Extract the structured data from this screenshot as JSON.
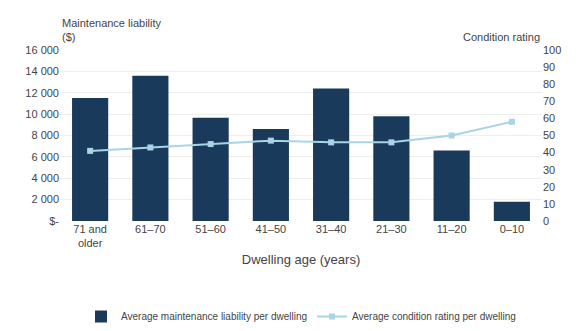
{
  "chart_data": {
    "type": "bar",
    "categories": [
      "71 and\nolder",
      "61–70",
      "51–60",
      "41–50",
      "31–40",
      "21–30",
      "11–20",
      "0–10"
    ],
    "series": [
      {
        "name": "Average maintenance liability per dwelling",
        "type": "bar",
        "color": "#1a3a5c",
        "values": [
          11500,
          13600,
          9650,
          8600,
          12400,
          9800,
          6600,
          1800
        ]
      },
      {
        "name": "Average condition rating per dwelling",
        "type": "line",
        "axis": "y2",
        "color": "#a8d4e6",
        "marker": "square",
        "values": [
          41,
          43,
          45,
          47,
          46,
          46,
          50,
          58
        ]
      }
    ],
    "xlabel": "Dwelling age (years)",
    "ylabel": "Maintenance liability\n($)",
    "y2label": "Condition rating",
    "ylim": [
      0,
      16000
    ],
    "yticks": [
      {
        "value": 0,
        "label": "$-"
      },
      {
        "value": 2000,
        "label": "2 000"
      },
      {
        "value": 4000,
        "label": "4 000"
      },
      {
        "value": 6000,
        "label": "6 000"
      },
      {
        "value": 8000,
        "label": "8 000"
      },
      {
        "value": 10000,
        "label": "10 000"
      },
      {
        "value": 12000,
        "label": "12 000"
      },
      {
        "value": 14000,
        "label": "14 000"
      },
      {
        "value": 16000,
        "label": "16 000"
      }
    ],
    "y2lim": [
      0,
      100
    ],
    "y2ticks": [
      0,
      10,
      20,
      30,
      40,
      50,
      60,
      70,
      80,
      90,
      100
    ],
    "grid": true,
    "legend": "bottom"
  }
}
